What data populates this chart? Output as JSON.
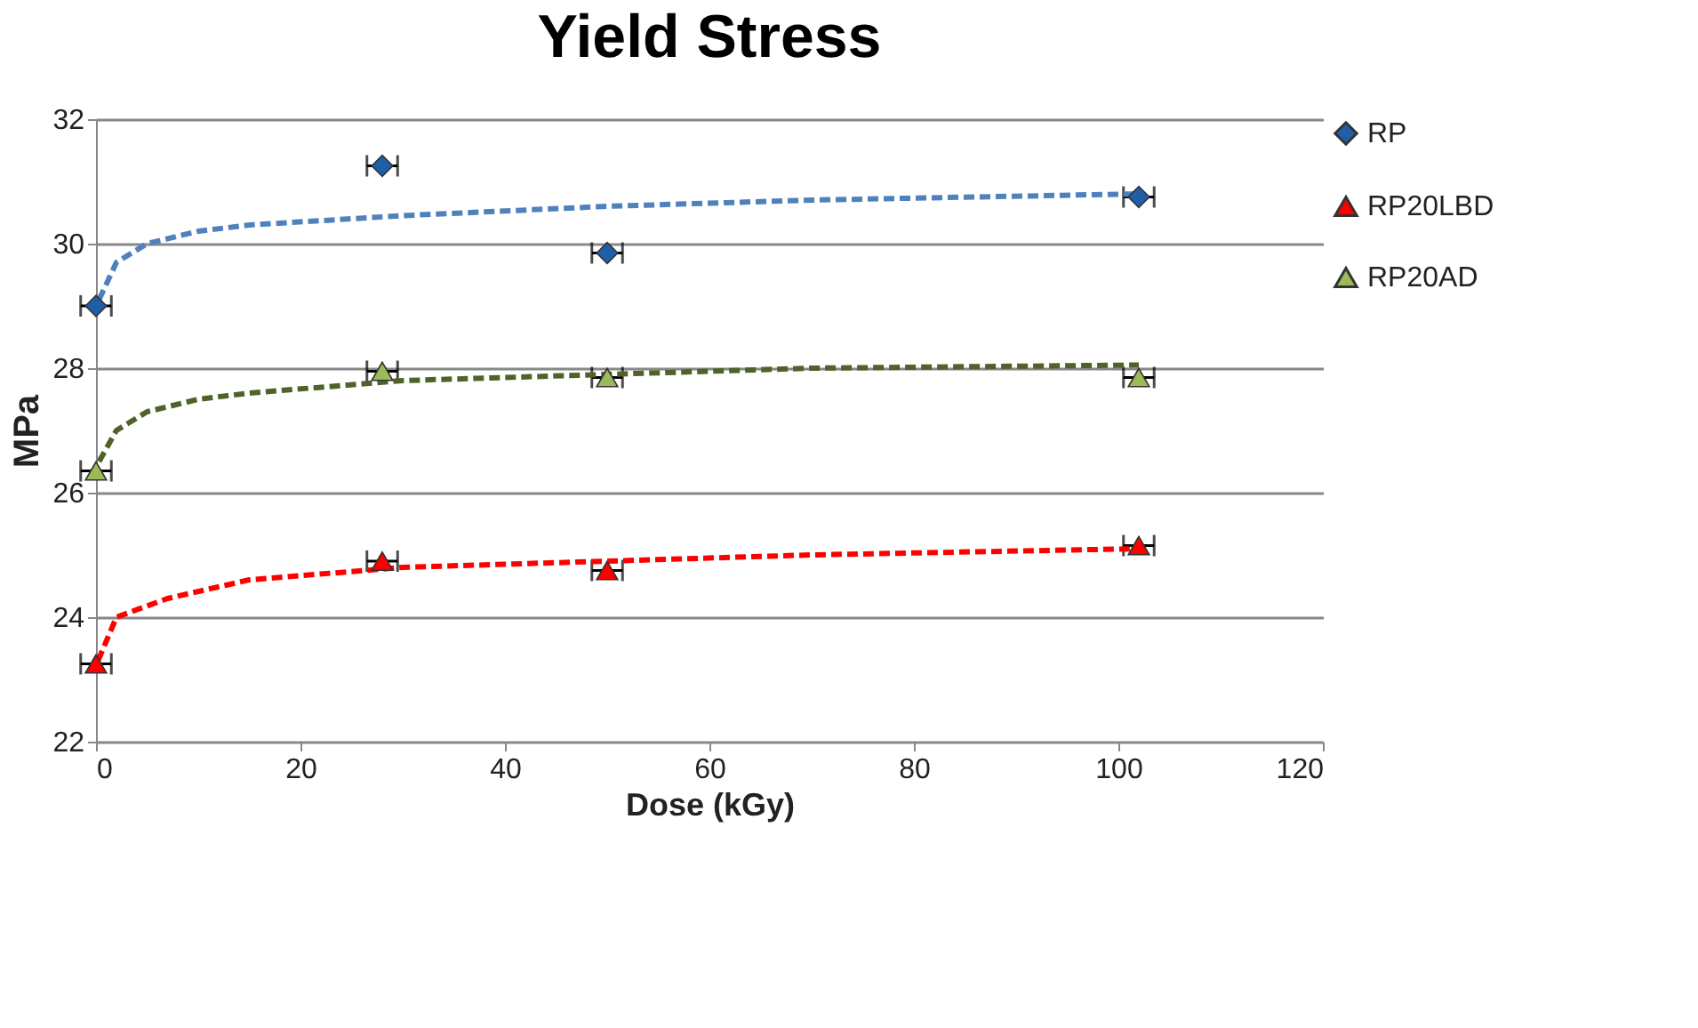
{
  "chart_data": {
    "type": "scatter",
    "title": "Yield Stress",
    "xlabel": "Dose (kGy)",
    "ylabel": "MPa",
    "xlim": [
      0,
      120
    ],
    "xticks": [
      0,
      20,
      40,
      60,
      80,
      100,
      120
    ],
    "ylim": [
      22,
      32
    ],
    "yticks": [
      22,
      24,
      26,
      28,
      30,
      32
    ],
    "grid": "y",
    "legend": "right",
    "series": [
      {
        "name": "RP",
        "marker": "diamond",
        "color": "#1f5fa8",
        "x": [
          0,
          28,
          50,
          102
        ],
        "values": [
          29.0,
          31.25,
          29.85,
          30.75
        ],
        "xerrors": [
          1.5,
          1.5,
          1.5,
          1.5
        ]
      },
      {
        "name": "RP20LBD",
        "marker": "triangle",
        "color": "#ff0000",
        "x": [
          0,
          28,
          50,
          102
        ],
        "values": [
          23.25,
          24.9,
          24.75,
          25.15
        ],
        "xerrors": [
          1.5,
          1.5,
          1.5,
          1.5
        ]
      },
      {
        "name": "RP20AD",
        "marker": "triangle",
        "color": "#9bbb59",
        "x": [
          0,
          28,
          50,
          102
        ],
        "values": [
          26.35,
          27.95,
          27.85,
          27.85
        ],
        "xerrors": [
          1.5,
          1.5,
          1.5,
          1.5
        ]
      },
      {
        "type": "line",
        "line_style": "dashed",
        "color": "#4f81bd",
        "x": [
          0.3,
          2,
          5,
          10,
          15,
          30,
          50,
          70,
          102
        ],
        "values": [
          29.1,
          29.7,
          30.0,
          30.2,
          30.3,
          30.45,
          30.6,
          30.7,
          30.8
        ]
      },
      {
        "type": "line",
        "line_style": "dashed",
        "color": "#4f6228",
        "x": [
          0.3,
          2,
          5,
          10,
          15,
          30,
          50,
          70,
          102
        ],
        "values": [
          26.5,
          27.0,
          27.3,
          27.5,
          27.6,
          27.8,
          27.9,
          28.0,
          28.05
        ]
      },
      {
        "type": "line",
        "line_style": "dashed",
        "color": "#ff0000",
        "x": [
          0.2,
          2,
          7,
          15,
          30,
          50,
          70,
          102
        ],
        "values": [
          23.3,
          24.0,
          24.3,
          24.6,
          24.8,
          24.9,
          25.0,
          25.1
        ]
      }
    ]
  }
}
